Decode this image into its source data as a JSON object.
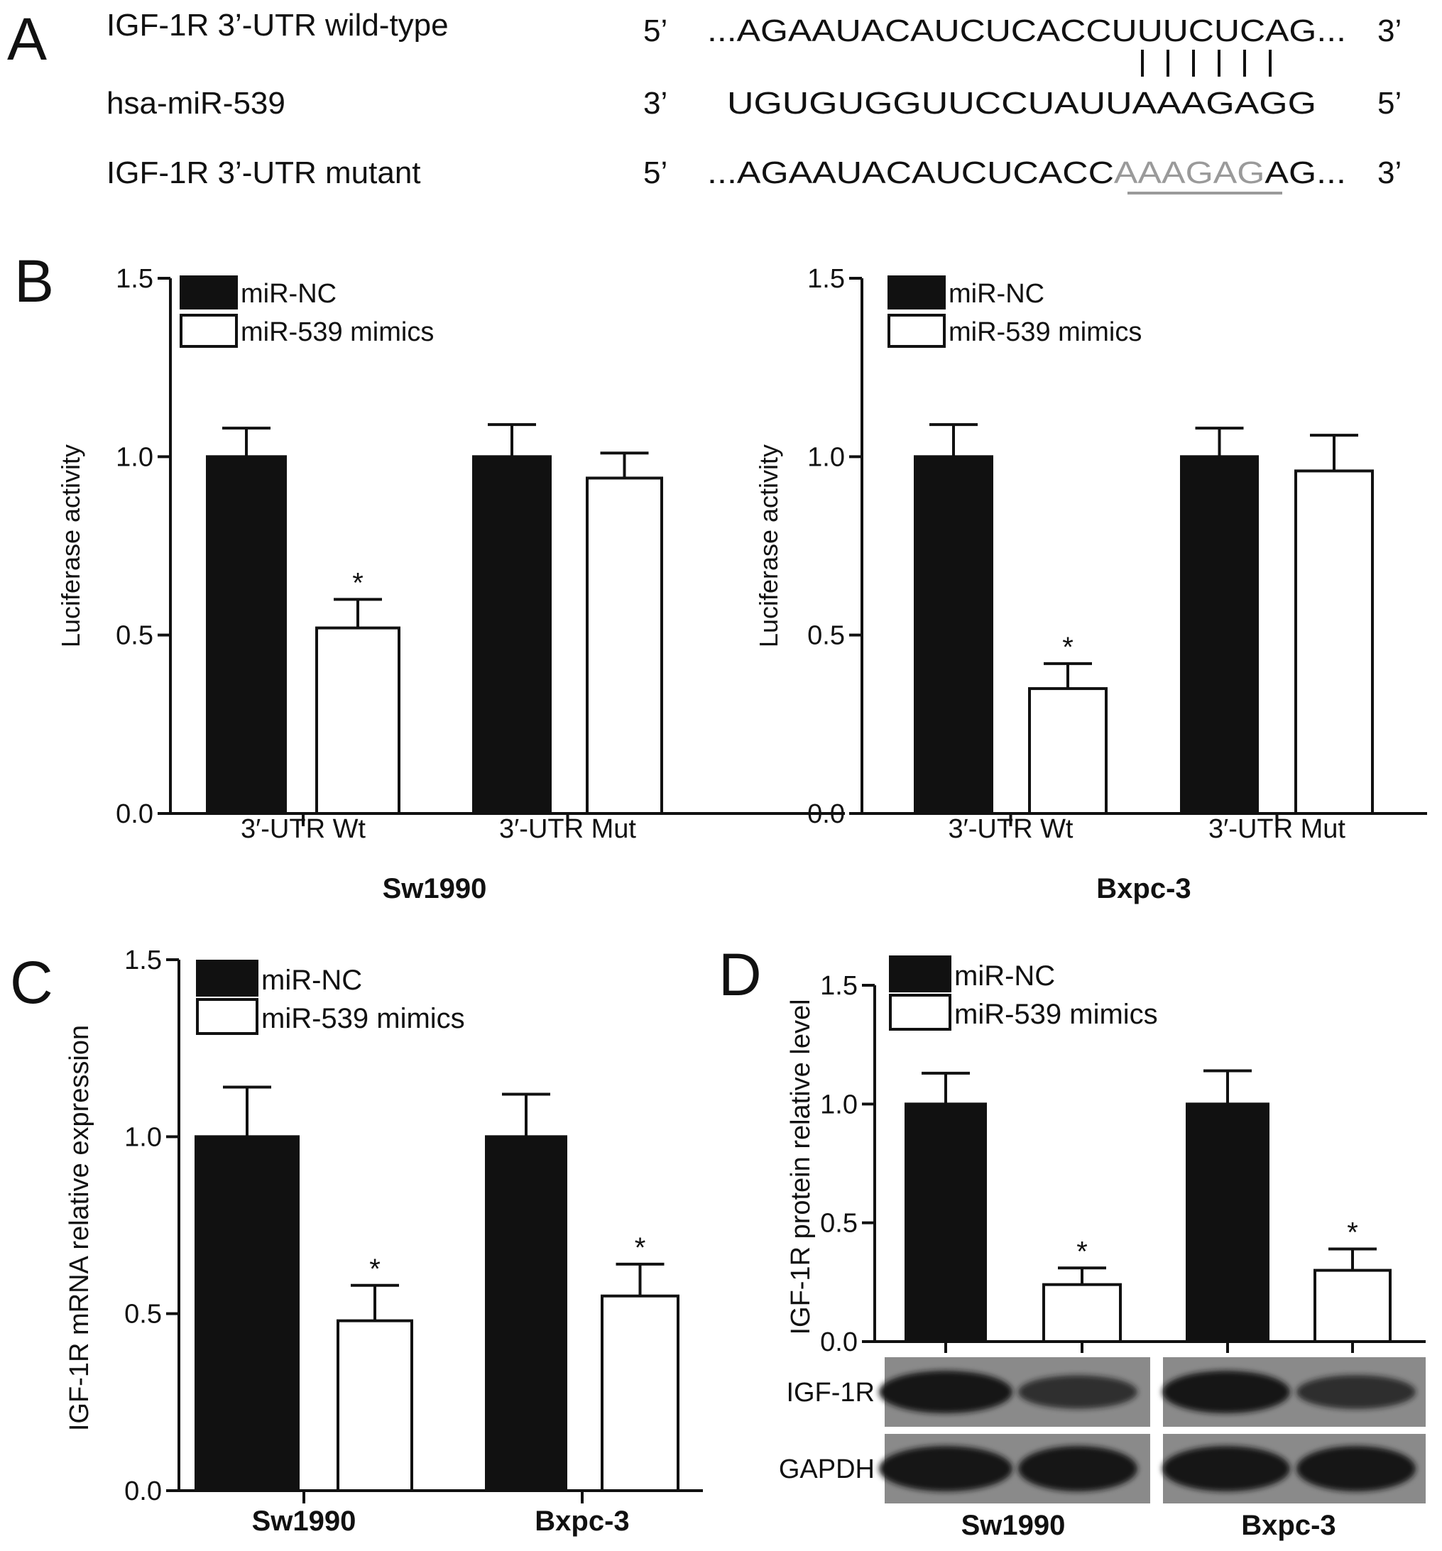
{
  "panel_a": {
    "letter": "A",
    "rows": [
      {
        "name": "IGF-1R 3’-UTR wild-type",
        "end5": "5’",
        "seq": "...AGAAUACAUCUCACCUUUCUCAG...",
        "end3": "3’"
      },
      {
        "name": "hsa-miR-539",
        "end5": "3’",
        "seq": "UGUGUGGUUCCUAUUAAAGAGG",
        "end3": "5’"
      },
      {
        "name": "IGF-1R 3’-UTR mutant",
        "end5": "5’",
        "seq_pre": "...AGAAUACAUCUCACC",
        "seq_mut": "AAAGAG",
        "seq_post": "AG...",
        "end3": "3’"
      }
    ]
  },
  "legend": {
    "nc": "miR-NC",
    "mimics": "miR-539 mimics"
  },
  "colors": {
    "nc": "#111111",
    "mimics": "#ffffff",
    "mutation": "#9a9a9a"
  },
  "chart_data": [
    {
      "panel": "B",
      "type": "bar",
      "ylabel": "Luciferase activity",
      "xlabel": "Sw1990",
      "categories": [
        "3′-UTR Wt",
        "3′-UTR Mut"
      ],
      "series": [
        {
          "name": "miR-NC",
          "values": [
            1.0,
            1.0
          ],
          "errors": [
            0.08,
            0.09
          ]
        },
        {
          "name": "miR-539 mimics",
          "values": [
            0.52,
            0.94
          ],
          "errors": [
            0.08,
            0.07
          ]
        }
      ],
      "significance": [
        [
          "",
          ""
        ],
        [
          "*",
          ""
        ]
      ],
      "ylim": [
        0,
        1.5
      ],
      "yticks": [
        "0.0",
        "0.5",
        "1.0",
        "1.5"
      ],
      "legend_position": "top-left"
    },
    {
      "panel": "",
      "type": "bar",
      "ylabel": "Luciferase activity",
      "xlabel": "Bxpc-3",
      "categories": [
        "3′-UTR Wt",
        "3′-UTR Mut"
      ],
      "series": [
        {
          "name": "miR-NC",
          "values": [
            1.0,
            1.0
          ],
          "errors": [
            0.09,
            0.08
          ]
        },
        {
          "name": "miR-539 mimics",
          "values": [
            0.35,
            0.96
          ],
          "errors": [
            0.07,
            0.1
          ]
        }
      ],
      "significance": [
        [
          "",
          ""
        ],
        [
          "*",
          ""
        ]
      ],
      "ylim": [
        0,
        1.5
      ],
      "yticks": [
        "0.0",
        "0.5",
        "1.0",
        "1.5"
      ],
      "legend_position": "top-left"
    },
    {
      "panel": "C",
      "type": "bar",
      "ylabel": "IGF-1R mRNA relative expression",
      "xlabel": "",
      "categories": [
        "Sw1990",
        "Bxpc-3"
      ],
      "series": [
        {
          "name": "miR-NC",
          "values": [
            1.0,
            1.0
          ],
          "errors": [
            0.14,
            0.12
          ]
        },
        {
          "name": "miR-539 mimics",
          "values": [
            0.48,
            0.55
          ],
          "errors": [
            0.1,
            0.09
          ]
        }
      ],
      "significance": [
        [
          "",
          ""
        ],
        [
          "*",
          "*"
        ]
      ],
      "ylim": [
        0,
        1.5
      ],
      "yticks": [
        "0.0",
        "0.5",
        "1.0",
        "1.5"
      ],
      "legend_position": "top-left"
    },
    {
      "panel": "D",
      "type": "bar",
      "ylabel": "IGF-1R protein relative level",
      "xlabel": "",
      "categories": [
        "Sw1990",
        "Bxpc-3"
      ],
      "series": [
        {
          "name": "miR-NC",
          "values": [
            1.0,
            1.0
          ],
          "errors": [
            0.13,
            0.14
          ]
        },
        {
          "name": "miR-539 mimics",
          "values": [
            0.24,
            0.3
          ],
          "errors": [
            0.07,
            0.09
          ]
        }
      ],
      "significance": [
        [
          "",
          ""
        ],
        [
          "*",
          "*"
        ]
      ],
      "ylim": [
        0,
        1.5
      ],
      "yticks": [
        "0.0",
        "0.5",
        "1.0",
        "1.5"
      ],
      "legend_position": "top-left",
      "blot": {
        "rows": [
          "IGF-1R",
          "GAPDH"
        ],
        "band_intensity": [
          [
            1.0,
            0.6,
            1.0,
            0.62
          ],
          [
            1.0,
            1.0,
            1.0,
            1.0
          ]
        ]
      }
    }
  ]
}
